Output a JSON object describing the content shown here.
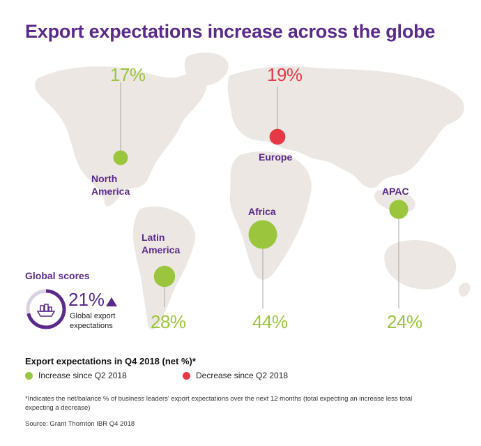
{
  "title": "Export expectations increase across the globe",
  "chart_data": {
    "type": "bubble-map",
    "title": "Export expectations in Q4 2018 (net %)*",
    "regions": [
      {
        "name": "North America",
        "value": 17,
        "label": "17%",
        "change": "increase"
      },
      {
        "name": "Europe",
        "value": 19,
        "label": "19%",
        "change": "decrease"
      },
      {
        "name": "Latin America",
        "value": 28,
        "label": "28%",
        "change": "increase"
      },
      {
        "name": "Africa",
        "value": 44,
        "label": "44%",
        "change": "increase"
      },
      {
        "name": "APAC",
        "value": 24,
        "label": "24%",
        "change": "increase"
      }
    ],
    "global": {
      "title": "Global scores",
      "value": 21,
      "label": "21%",
      "trend": "up",
      "caption": "Global export expectations"
    },
    "legend": [
      {
        "label": "Increase since Q2 2018",
        "color": "#9bc53d"
      },
      {
        "label": "Decrease since Q2 2018",
        "color": "#e63946"
      }
    ],
    "footnote": "*Indicates the net/balance % of business leaders' export expectations over the next 12 months (total expecting an increase less total expecting a decrease)",
    "source": "Source: Grant Thornton IBR Q4 2018"
  },
  "colors": {
    "increase": "#9bc53d",
    "decrease": "#e63946",
    "accent": "#5a2a8a",
    "land": "#ece7e3"
  }
}
